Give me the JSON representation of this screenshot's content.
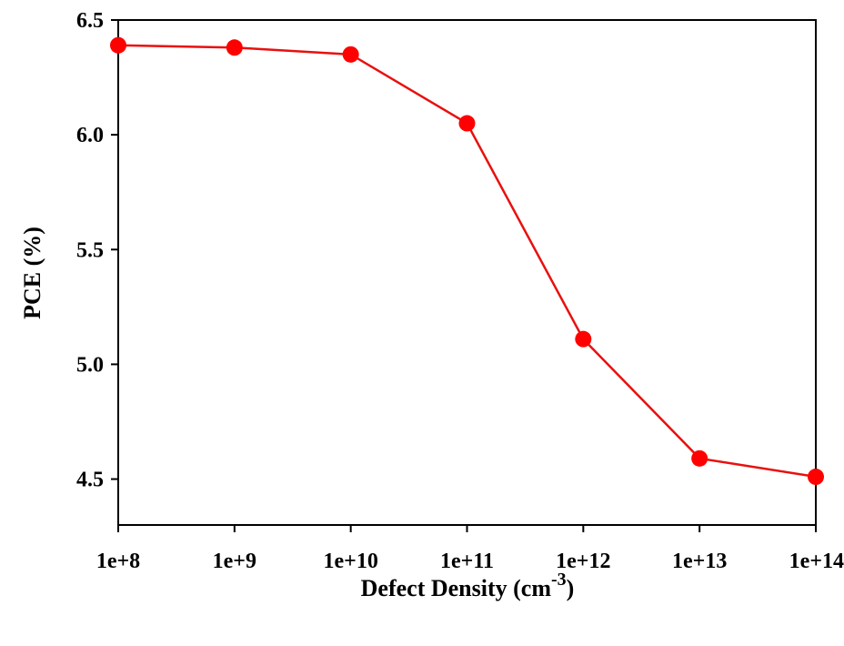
{
  "chart_data": {
    "type": "line",
    "title": "",
    "xlabel": "Defect Density (cm",
    "xlabel_superscript": "-3",
    "xlabel_suffix": ")",
    "ylabel": "PCE (%)",
    "x_scale": "log",
    "categories": [
      "1e+8",
      "1e+9",
      "1e+10",
      "1e+11",
      "1e+12",
      "1e+13",
      "1e+14"
    ],
    "x": [
      100000000.0,
      1000000000.0,
      10000000000.0,
      100000000000.0,
      1000000000000.0,
      10000000000000.0,
      100000000000000.0
    ],
    "series": [
      {
        "values": [
          6.39,
          6.38,
          6.35,
          6.05,
          5.11,
          4.59,
          4.51
        ]
      }
    ],
    "ylim": [
      4.3,
      6.5
    ],
    "yticks": [
      4.5,
      5.0,
      5.5,
      6.0,
      6.5
    ],
    "ytick_labels": [
      "4.5",
      "5.0",
      "5.5",
      "6.0",
      "6.5"
    ],
    "grid": false,
    "line_color": "#e8100e",
    "marker_color": "#ff0000",
    "marker": "circle"
  }
}
